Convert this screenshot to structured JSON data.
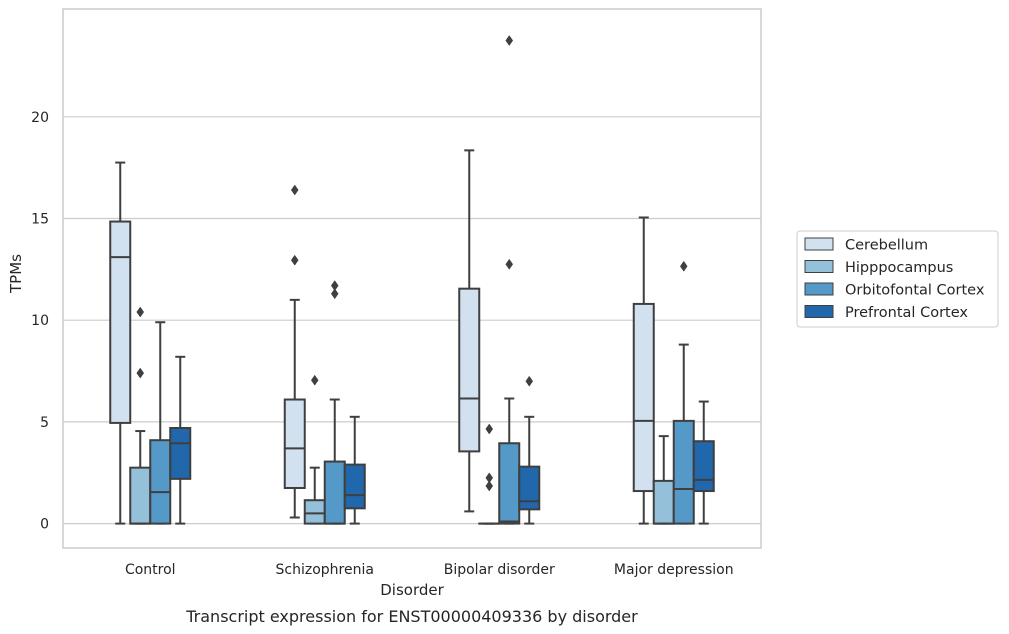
{
  "caption": "Transcript expression for ENST00000409336 by disorder",
  "chart_data": {
    "type": "box",
    "xlabel": "Disorder",
    "ylabel": "TPMs",
    "ylim": [
      -1.2,
      25.3
    ],
    "yticks": [
      0,
      5,
      10,
      15,
      20
    ],
    "grid": "horizontal",
    "legend_position": "right",
    "categories": [
      "Control",
      "Schizophrenia",
      "Bipolar disorder",
      "Major depression"
    ],
    "series": [
      {
        "name": "Cerebellum",
        "color": "#d1e1f0",
        "boxes": [
          {
            "min": 0.0,
            "q1": 4.95,
            "median": 13.1,
            "q3": 14.85,
            "max": 17.75,
            "outliers": []
          },
          {
            "min": 0.3,
            "q1": 1.75,
            "median": 3.7,
            "q3": 6.1,
            "max": 11.0,
            "outliers": [
              12.95,
              16.4
            ]
          },
          {
            "min": 0.6,
            "q1": 3.55,
            "median": 6.15,
            "q3": 11.55,
            "max": 18.35,
            "outliers": []
          },
          {
            "min": 0.0,
            "q1": 1.6,
            "median": 5.05,
            "q3": 10.8,
            "max": 15.05,
            "outliers": []
          }
        ]
      },
      {
        "name": "Hipppocampus",
        "color": "#94c0da",
        "boxes": [
          {
            "min": 0.0,
            "q1": 0.0,
            "median": 0.0,
            "q3": 2.75,
            "max": 4.55,
            "outliers": [
              7.4,
              10.4
            ]
          },
          {
            "min": 0.0,
            "q1": 0.0,
            "median": 0.5,
            "q3": 1.15,
            "max": 2.75,
            "outliers": [
              7.05
            ]
          },
          {
            "min": 0.0,
            "q1": 0.0,
            "median": 0.0,
            "q3": 0.0,
            "max": 0.0,
            "outliers": [
              1.85,
              2.25,
              4.65
            ]
          },
          {
            "min": 0.0,
            "q1": 0.0,
            "median": 0.0,
            "q3": 2.1,
            "max": 4.3,
            "outliers": []
          }
        ]
      },
      {
        "name": "Orbitofontal Cortex",
        "color": "#5499c7",
        "boxes": [
          {
            "min": 0.0,
            "q1": 0.0,
            "median": 1.55,
            "q3": 4.1,
            "max": 9.9,
            "outliers": []
          },
          {
            "min": 0.0,
            "q1": 0.0,
            "median": 0.0,
            "q3": 3.05,
            "max": 6.1,
            "outliers": [
              11.3,
              11.7
            ]
          },
          {
            "min": 0.0,
            "q1": 0.0,
            "median": 0.1,
            "q3": 3.95,
            "max": 6.15,
            "outliers": [
              12.75,
              23.75
            ]
          },
          {
            "min": 0.0,
            "q1": 0.0,
            "median": 1.7,
            "q3": 5.05,
            "max": 8.8,
            "outliers": [
              12.65
            ]
          }
        ]
      },
      {
        "name": "Prefrontal Cortex",
        "color": "#2167ab",
        "boxes": [
          {
            "min": 0.0,
            "q1": 2.2,
            "median": 3.95,
            "q3": 4.7,
            "max": 8.2,
            "outliers": []
          },
          {
            "min": 0.0,
            "q1": 0.75,
            "median": 1.4,
            "q3": 2.9,
            "max": 5.25,
            "outliers": []
          },
          {
            "min": 0.0,
            "q1": 0.7,
            "median": 1.1,
            "q3": 2.8,
            "max": 5.25,
            "outliers": [
              7.0
            ]
          },
          {
            "min": 0.0,
            "q1": 1.6,
            "median": 2.15,
            "q3": 4.05,
            "max": 6.0,
            "outliers": []
          }
        ]
      }
    ]
  }
}
